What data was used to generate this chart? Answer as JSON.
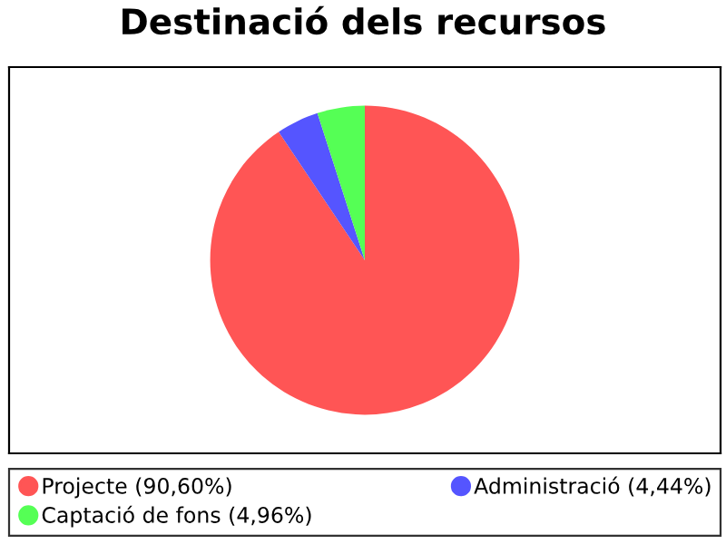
{
  "chart_data": {
    "type": "pie",
    "title": "Destinació dels recursos",
    "categories": [
      "Projecte (90,60%)",
      "Administració (4,44%)",
      "Captació de fons (4,96%)"
    ],
    "values": [
      90.6,
      4.44,
      4.96
    ],
    "colors": [
      "#ff5555",
      "#5555ff",
      "#55ff55"
    ],
    "legend": "bottom"
  }
}
